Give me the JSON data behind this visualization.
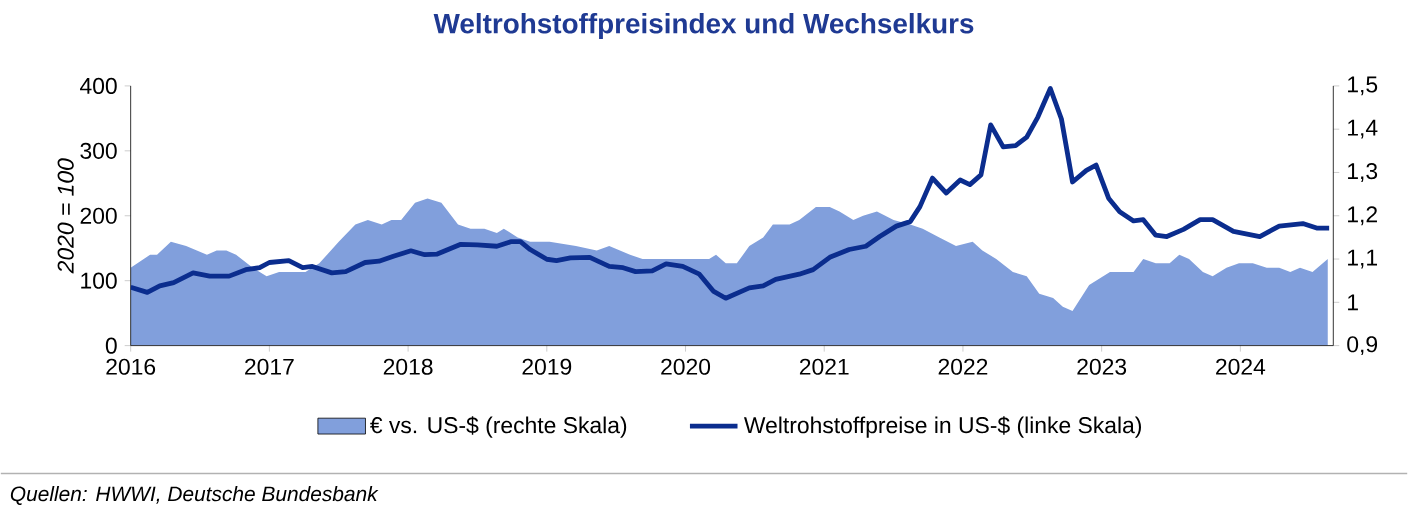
{
  "chart_data": {
    "type": "line",
    "title": "Weltrohstoffpreisindex und Wechselkurs",
    "ylabel": "2020 = 100",
    "xlim": [
      2016,
      2024.67
    ],
    "xticks": [
      2016,
      2017,
      2018,
      2019,
      2020,
      2021,
      2022,
      2023,
      2024
    ],
    "ylim": [
      0,
      400
    ],
    "yticks": [
      0,
      100,
      200,
      300,
      400
    ],
    "y2lim": [
      0.9,
      1.5
    ],
    "y2ticks": [
      {
        "value": 0.9,
        "label": "0,9"
      },
      {
        "value": 1,
        "label": "1"
      },
      {
        "value": 1.1,
        "label": "1,1"
      },
      {
        "value": 1.2,
        "label": "1,2"
      },
      {
        "value": 1.3,
        "label": "1,3"
      },
      {
        "value": 1.4,
        "label": "1,4"
      },
      {
        "value": 1.5,
        "label": "1,5"
      }
    ],
    "legend": "bottom",
    "series": [
      {
        "name": "€ vs. US-$ (rechte Skala)",
        "type": "area",
        "axis": "y2",
        "color": "#819fdc",
        "x": [
          2016.0,
          2016.14,
          2016.19,
          2016.29,
          2016.4,
          2016.55,
          2016.62,
          2016.69,
          2016.76,
          2016.88,
          2016.98,
          2017.07,
          2017.26,
          2017.36,
          2017.5,
          2017.62,
          2017.71,
          2017.81,
          2017.88,
          2017.95,
          2018.05,
          2018.14,
          2018.24,
          2018.36,
          2018.45,
          2018.55,
          2018.64,
          2018.69,
          2018.79,
          2018.88,
          2019.02,
          2019.21,
          2019.36,
          2019.45,
          2019.6,
          2019.69,
          2019.79,
          2020.08,
          2020.17,
          2020.22,
          2020.29,
          2020.37,
          2020.46,
          2020.56,
          2020.63,
          2020.75,
          2020.82,
          2020.94,
          2021.04,
          2021.11,
          2021.21,
          2021.28,
          2021.38,
          2021.5,
          2021.62,
          2021.71,
          2021.83,
          2021.95,
          2022.07,
          2022.14,
          2022.24,
          2022.36,
          2022.46,
          2022.55,
          2022.65,
          2022.72,
          2022.79,
          2022.91,
          2023.06,
          2023.15,
          2023.23,
          2023.3,
          2023.39,
          2023.49,
          2023.56,
          2023.63,
          2023.73,
          2023.8,
          2023.9,
          2023.99,
          2024.09,
          2024.19,
          2024.28,
          2024.36,
          2024.43,
          2024.52,
          2024.63
        ],
        "values": [
          1.08,
          1.11,
          1.11,
          1.14,
          1.13,
          1.11,
          1.12,
          1.12,
          1.11,
          1.08,
          1.06,
          1.07,
          1.07,
          1.09,
          1.14,
          1.18,
          1.19,
          1.18,
          1.19,
          1.19,
          1.23,
          1.24,
          1.23,
          1.18,
          1.17,
          1.17,
          1.16,
          1.17,
          1.15,
          1.14,
          1.14,
          1.13,
          1.12,
          1.13,
          1.11,
          1.1,
          1.1,
          1.1,
          1.1,
          1.11,
          1.09,
          1.09,
          1.13,
          1.15,
          1.18,
          1.18,
          1.19,
          1.22,
          1.22,
          1.21,
          1.19,
          1.2,
          1.21,
          1.19,
          1.18,
          1.17,
          1.15,
          1.13,
          1.14,
          1.12,
          1.1,
          1.07,
          1.06,
          1.02,
          1.01,
          0.99,
          0.98,
          1.04,
          1.07,
          1.07,
          1.07,
          1.1,
          1.09,
          1.09,
          1.11,
          1.1,
          1.07,
          1.06,
          1.08,
          1.09,
          1.09,
          1.08,
          1.08,
          1.07,
          1.08,
          1.07,
          1.1
        ]
      },
      {
        "name": "Weltrohstoffpreise in US-$ (linke Skala)",
        "color": "#0b2d8e",
        "x": [
          2016.0,
          2016.12,
          2016.21,
          2016.31,
          2016.45,
          2016.57,
          2016.71,
          2016.83,
          2016.93,
          2017.0,
          2017.14,
          2017.24,
          2017.31,
          2017.45,
          2017.55,
          2017.69,
          2017.79,
          2017.9,
          2018.02,
          2018.12,
          2018.21,
          2018.38,
          2018.5,
          2018.64,
          2018.74,
          2018.81,
          2018.88,
          2019.0,
          2019.07,
          2019.17,
          2019.31,
          2019.45,
          2019.55,
          2019.64,
          2019.76,
          2019.86,
          2019.98,
          2020.1,
          2020.2,
          2020.29,
          2020.46,
          2020.56,
          2020.65,
          2020.82,
          2020.92,
          2021.04,
          2021.18,
          2021.3,
          2021.4,
          2021.52,
          2021.62,
          2021.69,
          2021.78,
          2021.88,
          2021.98,
          2022.05,
          2022.13,
          2022.2,
          2022.29,
          2022.38,
          2022.46,
          2022.54,
          2022.63,
          2022.71,
          2022.79,
          2022.89,
          2022.96,
          2023.05,
          2023.13,
          2023.23,
          2023.3,
          2023.39,
          2023.47,
          2023.59,
          2023.71,
          2023.8,
          2023.95,
          2024.14,
          2024.28,
          2024.45,
          2024.55,
          2024.64
        ],
        "values": [
          90,
          82,
          92,
          97,
          112,
          107,
          107,
          117,
          120,
          128,
          131,
          120,
          122,
          112,
          114,
          128,
          130,
          138,
          146,
          140,
          141,
          156,
          155,
          153,
          160,
          160,
          148,
          133,
          131,
          135,
          136,
          122,
          120,
          114,
          115,
          126,
          122,
          110,
          84,
          73,
          89,
          92,
          102,
          110,
          117,
          136,
          148,
          153,
          168,
          184,
          191,
          214,
          258,
          235,
          255,
          248,
          263,
          340,
          306,
          308,
          321,
          352,
          396,
          349,
          252,
          270,
          278,
          227,
          206,
          192,
          194,
          170,
          168,
          179,
          194,
          194,
          176,
          168,
          184,
          188,
          181,
          181
        ]
      }
    ],
    "annotations": [
      "Quellen: HWWI, Deutsche Bundesbank"
    ]
  }
}
